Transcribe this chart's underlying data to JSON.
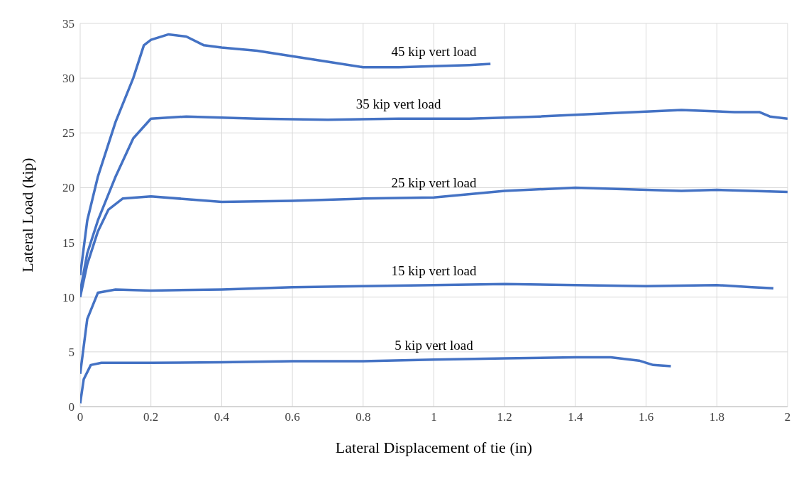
{
  "chart_data": {
    "type": "line",
    "xlabel": "Lateral Displacement of tie (in)",
    "ylabel": "Lateral Load (kip)",
    "xlim": [
      0,
      2
    ],
    "xticks": [
      0,
      0.2,
      0.4,
      0.6,
      0.8,
      1,
      1.2,
      1.4,
      1.6,
      1.8,
      2
    ],
    "ylim": [
      0,
      35
    ],
    "yticks": [
      0,
      5,
      10,
      15,
      20,
      25,
      30,
      35
    ],
    "grid": true,
    "legend": false,
    "marker": "none",
    "line_style": "solid",
    "series": [
      {
        "name": "45 kip vert load",
        "color": "#4472c4",
        "x": [
          0,
          0.02,
          0.05,
          0.1,
          0.15,
          0.18,
          0.2,
          0.25,
          0.3,
          0.35,
          0.4,
          0.5,
          0.6,
          0.7,
          0.8,
          0.9,
          1.0,
          1.1,
          1.16
        ],
        "values": [
          12,
          17,
          21,
          26,
          30,
          33,
          33.5,
          34,
          33.8,
          33,
          32.8,
          32.5,
          32,
          31.5,
          31,
          31,
          31.1,
          31.2,
          31.3
        ]
      },
      {
        "name": "35 kip vert load",
        "color": "#4472c4",
        "x": [
          0,
          0.02,
          0.05,
          0.1,
          0.15,
          0.2,
          0.3,
          0.5,
          0.7,
          0.9,
          1.1,
          1.3,
          1.5,
          1.7,
          1.85,
          1.92,
          1.95,
          2.0
        ],
        "values": [
          10.5,
          14,
          17,
          21,
          24.5,
          26.3,
          26.5,
          26.3,
          26.2,
          26.3,
          26.3,
          26.5,
          26.8,
          27.1,
          26.9,
          26.9,
          26.5,
          26.3
        ]
      },
      {
        "name": "25 kip vert load",
        "color": "#4472c4",
        "x": [
          0,
          0.02,
          0.05,
          0.08,
          0.12,
          0.2,
          0.4,
          0.6,
          0.8,
          1,
          1.2,
          1.4,
          1.6,
          1.7,
          1.8,
          2
        ],
        "values": [
          10,
          13,
          16,
          18,
          19,
          19.2,
          18.7,
          18.8,
          19,
          19.1,
          19.7,
          20,
          19.8,
          19.7,
          19.8,
          19.6
        ]
      },
      {
        "name": "15 kip vert load",
        "color": "#4472c4",
        "x": [
          0,
          0.02,
          0.05,
          0.1,
          0.2,
          0.4,
          0.6,
          0.8,
          1,
          1.2,
          1.4,
          1.6,
          1.8,
          1.9,
          1.96
        ],
        "values": [
          3,
          8,
          10.4,
          10.7,
          10.6,
          10.7,
          10.9,
          11,
          11.1,
          11.2,
          11.1,
          11,
          11.1,
          10.9,
          10.8
        ]
      },
      {
        "name": "5 kip vert load",
        "color": "#4472c4",
        "x": [
          0,
          0.01,
          0.03,
          0.06,
          0.2,
          0.4,
          0.6,
          0.8,
          1,
          1.2,
          1.4,
          1.5,
          1.58,
          1.62,
          1.67
        ],
        "values": [
          0.3,
          2.5,
          3.8,
          4,
          4,
          4.05,
          4.15,
          4.15,
          4.3,
          4.4,
          4.5,
          4.5,
          4.2,
          3.8,
          3.7
        ]
      }
    ]
  }
}
